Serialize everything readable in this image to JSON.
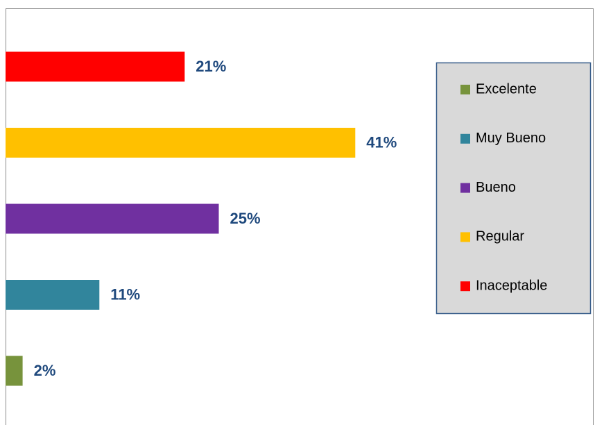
{
  "chart_data": {
    "type": "bar",
    "orientation": "horizontal",
    "categories": [
      "Excelente",
      "Muy Bueno",
      "Bueno",
      "Regular",
      "Inaceptable"
    ],
    "values": [
      2,
      11,
      25,
      41,
      21
    ],
    "value_labels": [
      "2%",
      "11%",
      "25%",
      "41%",
      "21%"
    ],
    "colors": [
      "#77933c",
      "#31859c",
      "#7030a0",
      "#ffc000",
      "#ff0000"
    ],
    "legend": "right"
  }
}
